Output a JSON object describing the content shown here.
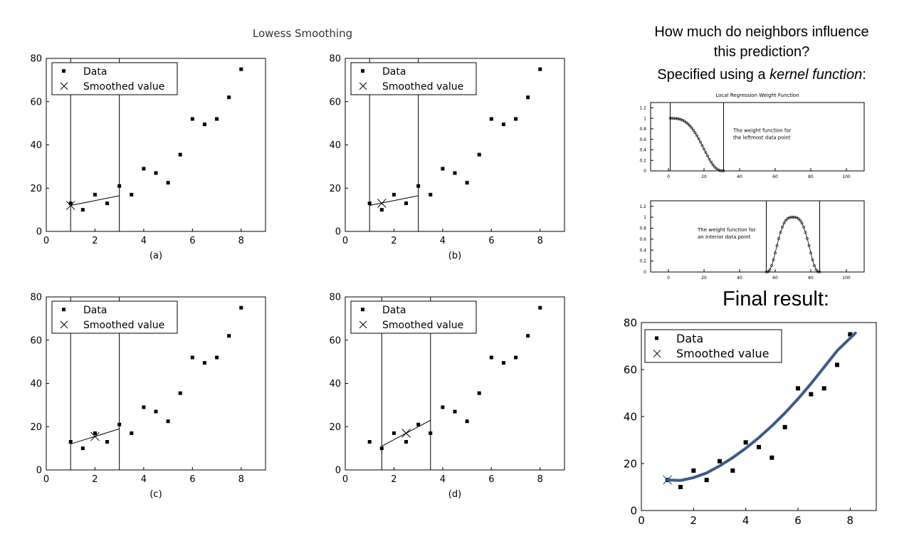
{
  "figure_title": "Lowess Smoothing",
  "legend": {
    "data_label": "Data",
    "smooth_label": "Smoothed value"
  },
  "right_text": {
    "line1": "How much do neighbors influence",
    "line2": "this prediction?",
    "line3_prefix": "Specified using a ",
    "line3_emph": "kernel function",
    "line3_suffix": ":",
    "final_title": "Final result:"
  },
  "chart_data": [
    {
      "type": "scatter",
      "caption": "(a)",
      "xlim": [
        0,
        9
      ],
      "ylim": [
        0,
        80
      ],
      "xticks": [
        0,
        2,
        4,
        6,
        8
      ],
      "yticks": [
        0,
        20,
        40,
        60,
        80
      ],
      "points": [
        [
          1,
          13
        ],
        [
          1.5,
          10
        ],
        [
          2,
          17
        ],
        [
          2.5,
          13
        ],
        [
          3,
          21
        ],
        [
          3.5,
          17
        ],
        [
          4,
          29
        ],
        [
          4.5,
          27
        ],
        [
          5,
          22.5
        ],
        [
          5.5,
          35.5
        ],
        [
          6,
          52
        ],
        [
          6.5,
          49.5
        ],
        [
          7,
          52
        ],
        [
          7.5,
          62
        ],
        [
          8,
          75
        ]
      ],
      "window": [
        1,
        3
      ],
      "local_fit": [
        [
          1,
          12
        ],
        [
          3,
          16.5
        ]
      ],
      "smoothed": [
        1,
        12
      ]
    },
    {
      "type": "scatter",
      "caption": "(b)",
      "xlim": [
        0,
        9
      ],
      "ylim": [
        0,
        80
      ],
      "xticks": [
        0,
        2,
        4,
        6,
        8
      ],
      "yticks": [
        0,
        20,
        40,
        60,
        80
      ],
      "points": [
        [
          1,
          13
        ],
        [
          1.5,
          10
        ],
        [
          2,
          17
        ],
        [
          2.5,
          13
        ],
        [
          3,
          21
        ],
        [
          3.5,
          17
        ],
        [
          4,
          29
        ],
        [
          4.5,
          27
        ],
        [
          5,
          22.5
        ],
        [
          5.5,
          35.5
        ],
        [
          6,
          52
        ],
        [
          6.5,
          49.5
        ],
        [
          7,
          52
        ],
        [
          7.5,
          62
        ],
        [
          8,
          75
        ]
      ],
      "window": [
        1,
        3
      ],
      "local_fit": [
        [
          1,
          12
        ],
        [
          3,
          16.5
        ]
      ],
      "smoothed": [
        1.5,
        13
      ]
    },
    {
      "type": "scatter",
      "caption": "(c)",
      "xlim": [
        0,
        9
      ],
      "ylim": [
        0,
        80
      ],
      "xticks": [
        0,
        2,
        4,
        6,
        8
      ],
      "yticks": [
        0,
        20,
        40,
        60,
        80
      ],
      "points": [
        [
          1,
          13
        ],
        [
          1.5,
          10
        ],
        [
          2,
          17
        ],
        [
          2.5,
          13
        ],
        [
          3,
          21
        ],
        [
          3.5,
          17
        ],
        [
          4,
          29
        ],
        [
          4.5,
          27
        ],
        [
          5,
          22.5
        ],
        [
          5.5,
          35.5
        ],
        [
          6,
          52
        ],
        [
          6.5,
          49.5
        ],
        [
          7,
          52
        ],
        [
          7.5,
          62
        ],
        [
          8,
          75
        ]
      ],
      "window": [
        1,
        3
      ],
      "local_fit": [
        [
          1,
          12
        ],
        [
          3,
          19
        ]
      ],
      "smoothed": [
        2,
        15.5
      ]
    },
    {
      "type": "scatter",
      "caption": "(d)",
      "xlim": [
        0,
        9
      ],
      "ylim": [
        0,
        80
      ],
      "xticks": [
        0,
        2,
        4,
        6,
        8
      ],
      "yticks": [
        0,
        20,
        40,
        60,
        80
      ],
      "points": [
        [
          1,
          13
        ],
        [
          1.5,
          10
        ],
        [
          2,
          17
        ],
        [
          2.5,
          13
        ],
        [
          3,
          21
        ],
        [
          3.5,
          17
        ],
        [
          4,
          29
        ],
        [
          4.5,
          27
        ],
        [
          5,
          22.5
        ],
        [
          5.5,
          35.5
        ],
        [
          6,
          52
        ],
        [
          6.5,
          49.5
        ],
        [
          7,
          52
        ],
        [
          7.5,
          62
        ],
        [
          8,
          75
        ]
      ],
      "window": [
        1.5,
        3.5
      ],
      "local_fit": [
        [
          1.5,
          11
        ],
        [
          3.5,
          23
        ]
      ],
      "smoothed": [
        2.5,
        17
      ]
    },
    {
      "type": "line",
      "title": "Local Regression Weight Function",
      "annotation": [
        "The weight function for",
        "the leftmost data point"
      ],
      "xlim": [
        -10,
        110
      ],
      "ylim": [
        0,
        1.3
      ],
      "xticks": [
        0,
        20,
        40,
        60,
        80,
        100
      ],
      "yticks": [
        0,
        0.2,
        0.4,
        0.6,
        0.8,
        1,
        1.2
      ],
      "window": [
        1,
        31
      ],
      "center": 1,
      "span": 30
    },
    {
      "type": "line",
      "annotation": [
        "The weight function for",
        "an interior data point"
      ],
      "xlim": [
        -10,
        110
      ],
      "ylim": [
        0,
        1.3
      ],
      "xticks": [
        0,
        20,
        40,
        60,
        80,
        100
      ],
      "yticks": [
        0,
        0.2,
        0.4,
        0.6,
        0.8,
        1,
        1.2
      ],
      "window": [
        55,
        85
      ],
      "center": 70,
      "span": 15
    },
    {
      "type": "scatter",
      "xlim": [
        0,
        9
      ],
      "ylim": [
        0,
        80
      ],
      "xticks": [
        0,
        2,
        4,
        6,
        8
      ],
      "yticks": [
        0,
        20,
        40,
        60,
        80
      ],
      "points": [
        [
          1,
          13
        ],
        [
          1.5,
          10
        ],
        [
          2,
          17
        ],
        [
          2.5,
          13
        ],
        [
          3,
          21
        ],
        [
          3.5,
          17
        ],
        [
          4,
          29
        ],
        [
          4.5,
          27
        ],
        [
          5,
          22.5
        ],
        [
          5.5,
          35.5
        ],
        [
          6,
          52
        ],
        [
          6.5,
          49.5
        ],
        [
          7,
          52
        ],
        [
          7.5,
          62
        ],
        [
          8,
          75
        ]
      ],
      "curve": [
        [
          1,
          13
        ],
        [
          1.5,
          12.8
        ],
        [
          2,
          14
        ],
        [
          2.5,
          16
        ],
        [
          3,
          19
        ],
        [
          3.5,
          22.5
        ],
        [
          4,
          26.5
        ],
        [
          4.5,
          31
        ],
        [
          5,
          36
        ],
        [
          5.5,
          41.5
        ],
        [
          6,
          47.5
        ],
        [
          6.5,
          54
        ],
        [
          7,
          61
        ],
        [
          7.5,
          68
        ],
        [
          8.2,
          75.5
        ]
      ],
      "curve_color": "#3c5a8a",
      "smoothed": [
        1,
        13
      ]
    }
  ]
}
